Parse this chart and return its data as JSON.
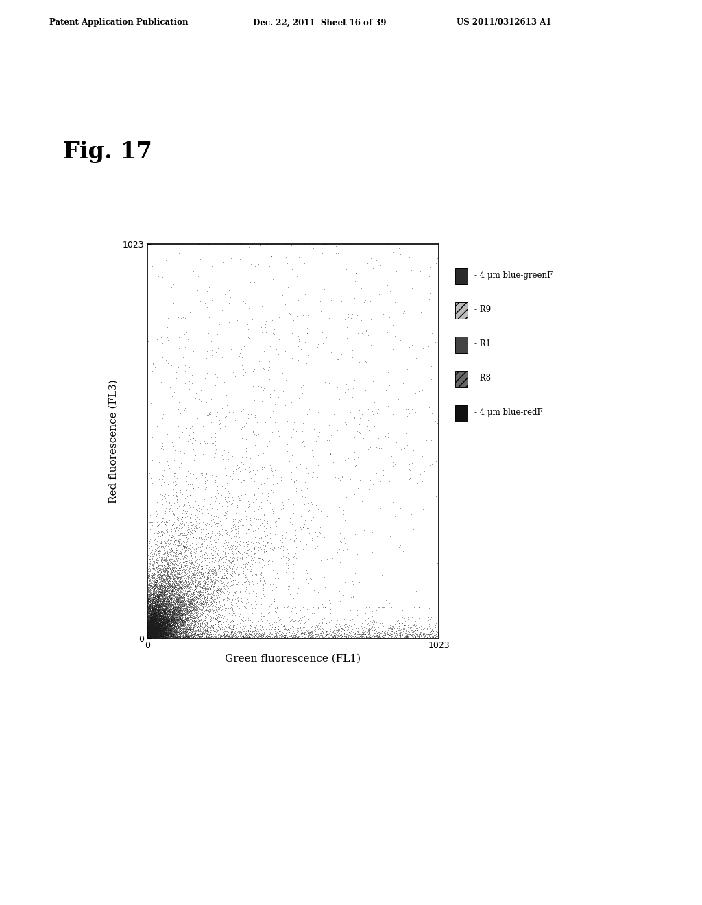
{
  "title": "Fig. 17",
  "xlabel": "Green fluorescence (FL1)",
  "ylabel": "Red fluorescence (FL3)",
  "xlim": [
    0,
    1023
  ],
  "ylim": [
    0,
    1023
  ],
  "xticks": [
    0,
    1023
  ],
  "yticks": [
    0,
    1023
  ],
  "header_left": "Patent Application Publication",
  "header_center": "Dec. 22, 2011  Sheet 16 of 39",
  "header_right": "US 2011/0312613 A1",
  "legend_labels": [
    "4 μm blue-greenF",
    "R9",
    "R1",
    "R8",
    "4 μm blue-redF"
  ],
  "legend_face_colors": [
    "#2a2a2a",
    "#bbbbbb",
    "#444444",
    "#666666",
    "#111111"
  ],
  "legend_hatches": [
    null,
    "///",
    null,
    "///",
    null
  ],
  "background_color": "#ffffff",
  "plot_bg": "#ffffff",
  "seed": 42
}
